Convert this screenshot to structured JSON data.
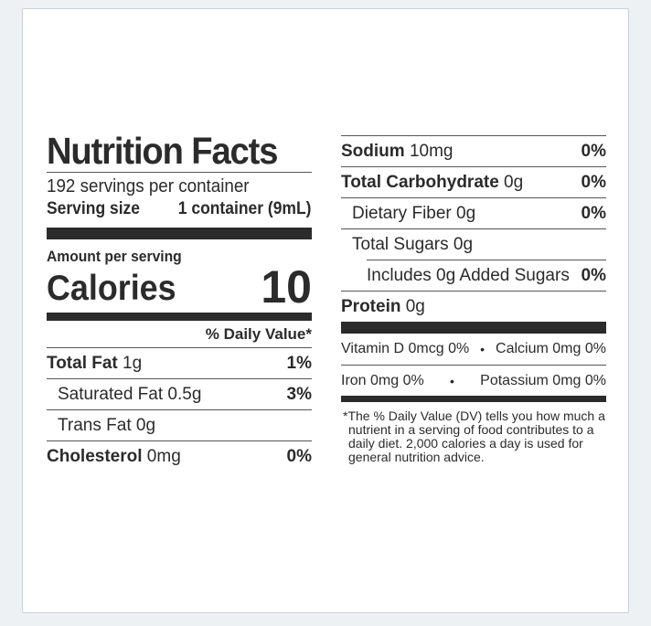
{
  "title": "Nutrition Facts",
  "servings_per_container": "192 servings per container",
  "serving_size_label": "Serving size",
  "serving_size_value": "1 container (9mL)",
  "amount_per_serving": "Amount per serving",
  "calories_label": "Calories",
  "calories_value": "10",
  "daily_value_header": "% Daily Value*",
  "left_rows": [
    {
      "name": "Total Fat",
      "amount": " 1g",
      "pct": "1%"
    },
    {
      "name": "Saturated Fat",
      "amount": " 0.5g",
      "pct": "3%"
    },
    {
      "name": "Trans Fat",
      "amount": " 0g",
      "pct": ""
    },
    {
      "name": "Cholesterol",
      "amount": " 0mg",
      "pct": "0%"
    }
  ],
  "right_rows": [
    {
      "name": "Sodium",
      "amount": " 10mg",
      "pct": "0%"
    },
    {
      "name": "Total Carbohydrate",
      "amount": " 0g",
      "pct": "0%"
    },
    {
      "name": "Dietary Fiber",
      "amount": " 0g",
      "pct": "0%"
    },
    {
      "name": "Total Sugars",
      "amount": " 0g",
      "pct": ""
    },
    {
      "name": "Includes 0g Added Sugars",
      "amount": "",
      "pct": "0%"
    },
    {
      "name": "Protein",
      "amount": " 0g",
      "pct": ""
    }
  ],
  "vitamins": [
    {
      "left": "Vitamin D 0mcg 0%",
      "bullet": "•",
      "right": "Calcium 0mg 0%"
    },
    {
      "left": "Iron 0mg 0%",
      "bullet": "•",
      "right": "Potassium 0mg 0%"
    }
  ],
  "footnote": "*The % Daily Value (DV) tells you how much a nutrient in a serving of food contributes to a daily diet. 2,000 calories a day is used for general nutrition advice."
}
